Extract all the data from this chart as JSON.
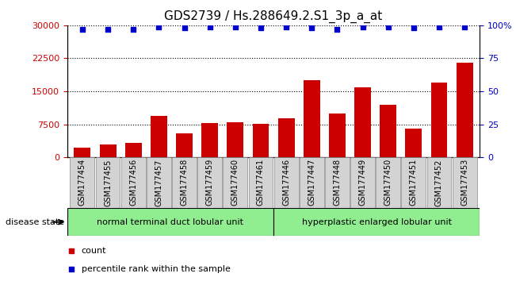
{
  "title": "GDS2739 / Hs.288649.2.S1_3p_a_at",
  "samples": [
    "GSM177454",
    "GSM177455",
    "GSM177456",
    "GSM177457",
    "GSM177458",
    "GSM177459",
    "GSM177460",
    "GSM177461",
    "GSM177446",
    "GSM177447",
    "GSM177448",
    "GSM177449",
    "GSM177450",
    "GSM177451",
    "GSM177452",
    "GSM177453"
  ],
  "counts": [
    2200,
    3000,
    3200,
    9500,
    5500,
    7800,
    7900,
    7600,
    8800,
    17500,
    10000,
    16000,
    12000,
    6500,
    17000,
    21500
  ],
  "percentiles": [
    97,
    97,
    97,
    99,
    98,
    99,
    99,
    98,
    99,
    98,
    97,
    99,
    99,
    98,
    99,
    99
  ],
  "group1_label": "normal terminal duct lobular unit",
  "group2_label": "hyperplastic enlarged lobular unit",
  "group1_count": 8,
  "group2_count": 8,
  "bar_color": "#cc0000",
  "dot_color": "#0000cc",
  "ylim_left": [
    0,
    30000
  ],
  "yticks_left": [
    0,
    7500,
    15000,
    22500,
    30000
  ],
  "ylim_right": [
    0,
    100
  ],
  "yticks_right": [
    0,
    25,
    50,
    75,
    100
  ],
  "legend_count_label": "count",
  "legend_pct_label": "percentile rank within the sample",
  "disease_state_label": "disease state",
  "group_bg": "#90ee90",
  "tick_bg": "#d3d3d3",
  "title_fontsize": 11,
  "tick_fontsize": 7,
  "axis_fontsize": 8
}
